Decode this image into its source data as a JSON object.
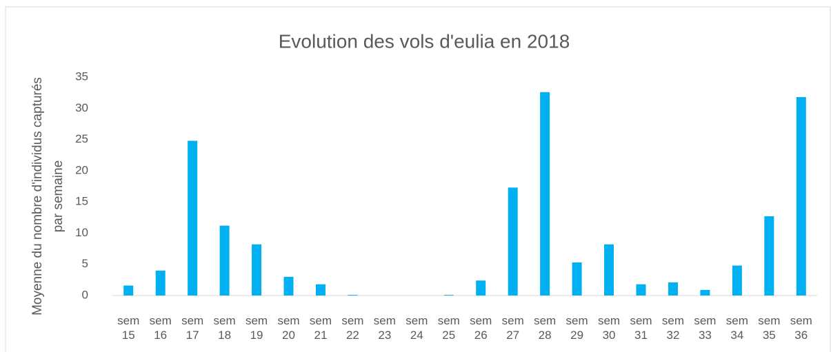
{
  "chart_data": {
    "type": "bar",
    "title": "Evolution des vols d'eulia en 2018",
    "y_label": "Moyenne du nombre d'individus capturés par semaine",
    "categories": [
      "sem 15",
      "sem 16",
      "sem 17",
      "sem 18",
      "sem 19",
      "sem 20",
      "sem 21",
      "sem 22",
      "sem 23",
      "sem 24",
      "sem 25",
      "sem 26",
      "sem 27",
      "sem 28",
      "sem 29",
      "sem 30",
      "sem 31",
      "sem 32",
      "sem 33",
      "sem 34",
      "sem 35",
      "sem 36"
    ],
    "values": [
      1.6,
      4.0,
      24.8,
      11.2,
      8.2,
      3.0,
      1.8,
      0.1,
      0,
      0,
      0.1,
      2.4,
      17.3,
      32.6,
      5.3,
      8.2,
      1.8,
      2.1,
      0.9,
      4.8,
      12.7,
      31.8
    ],
    "color": "#00b0f0",
    "ylim": [
      0,
      35
    ],
    "yticks": [
      0,
      5,
      10,
      15,
      20,
      25,
      30,
      35
    ],
    "grid": false
  }
}
